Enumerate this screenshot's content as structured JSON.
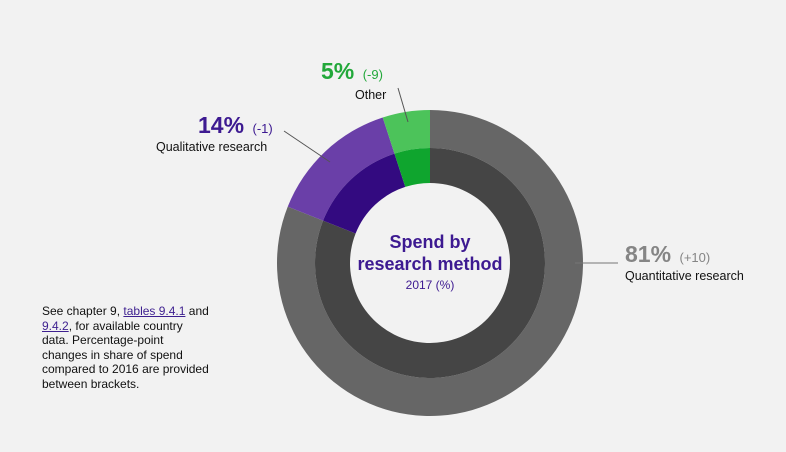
{
  "colors": {
    "quantitative_outer": "#666666",
    "quantitative_inner": "#454545",
    "qualitative_outer": "#6a3fa8",
    "qualitative_inner": "#330a80",
    "other_outer": "#4cc35a",
    "other_inner": "#0fa52e",
    "title": "#3d1a91",
    "background": "#f2f2f2"
  },
  "chart_data": {
    "type": "pie",
    "title": "Spend by research method",
    "subtitle": "2017 (%)",
    "categories": [
      "Quantitative research",
      "Qualitative research",
      "Other"
    ],
    "values": [
      81,
      14,
      5
    ],
    "changes": [
      "(+10)",
      "(-1)",
      "(-9)"
    ],
    "value_labels": [
      "81%",
      "14%",
      "5%"
    ]
  },
  "center": {
    "title_line1": "Spend by",
    "title_line2": "research method",
    "subtitle": "2017 (%)"
  },
  "note": {
    "text1": "See chapter 9, ",
    "link1": "tables 9.4.1",
    "text2": " and ",
    "link2": "9.4.2",
    "text3": ", for available country data. Percentage-point changes in share of spend compared to 2016 are provided between brackets."
  }
}
